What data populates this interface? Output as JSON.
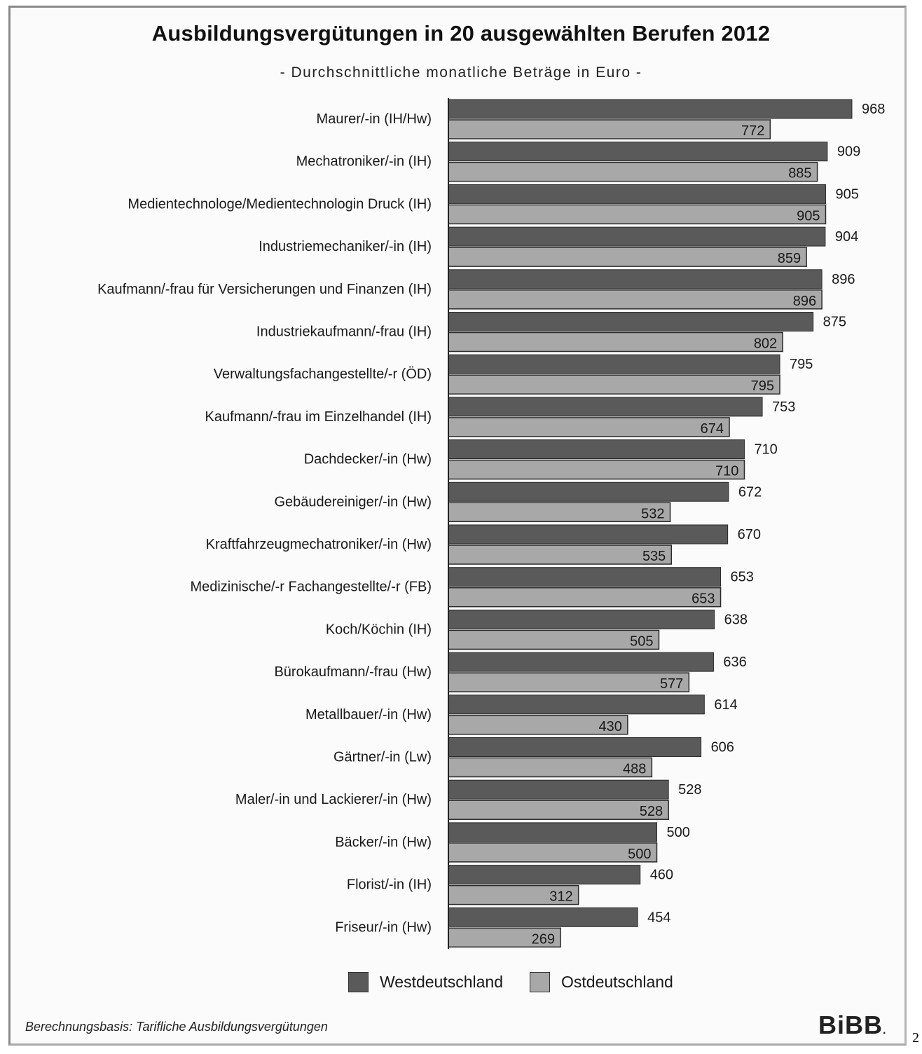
{
  "page_number": "2",
  "footnote": "Berechnungsbasis: Tarifliche Ausbildungsvergütungen",
  "logo": "BiBB",
  "colors": {
    "west": "#5a5a5a",
    "ost": "#a8a8a8",
    "frame": "#8a8a8a"
  },
  "chart_data": {
    "type": "bar",
    "orientation": "horizontal",
    "title": "Ausbildungsvergütungen in 20 ausgewählten Berufen 2012",
    "subtitle": "- Durchschnittliche monatliche Beträge in Euro -",
    "xlabel": "",
    "ylabel": "",
    "xlim": [
      0,
      1000
    ],
    "grid": false,
    "legend_position": "bottom",
    "categories": [
      "Maurer/-in (IH/Hw)",
      "Mechatroniker/-in (IH)",
      "Medientechnologe/Medientechnologin Druck (IH)",
      "Industriemechaniker/-in (IH)",
      "Kaufmann/-frau für Versicherungen und Finanzen (IH)",
      "Industriekaufmann/-frau (IH)",
      "Verwaltungsfachangestellte/-r (ÖD)",
      "Kaufmann/-frau im Einzelhandel (IH)",
      "Dachdecker/-in (Hw)",
      "Gebäudereiniger/-in (Hw)",
      "Kraftfahrzeugmechatroniker/-in (Hw)",
      "Medizinische/-r Fachangestellte/-r (FB)",
      "Koch/Köchin (IH)",
      "Bürokaufmann/-frau (Hw)",
      "Metallbauer/-in (Hw)",
      "Gärtner/-in (Lw)",
      "Maler/-in und Lackierer/-in (Hw)",
      "Bäcker/-in (Hw)",
      "Florist/-in (IH)",
      "Friseur/-in (Hw)"
    ],
    "series": [
      {
        "name": "Westdeutschland",
        "values": [
          968,
          909,
          905,
          904,
          896,
          875,
          795,
          753,
          710,
          672,
          670,
          653,
          638,
          636,
          614,
          606,
          528,
          500,
          460,
          454
        ]
      },
      {
        "name": "Ostdeutschland",
        "values": [
          772,
          885,
          905,
          859,
          896,
          802,
          795,
          674,
          710,
          532,
          535,
          653,
          505,
          577,
          430,
          488,
          528,
          500,
          312,
          269
        ]
      }
    ]
  }
}
